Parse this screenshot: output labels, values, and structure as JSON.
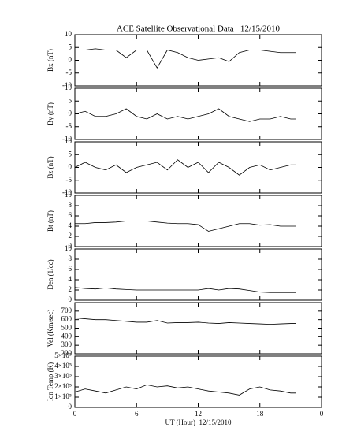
{
  "chart_data": [
    {
      "type": "line",
      "title": "ACE Satellite Observational Data   12/15/2010",
      "ylabel": "Bx (nT)",
      "x": [
        0,
        1,
        2,
        3,
        4,
        5,
        6,
        7,
        8,
        9,
        10,
        11,
        12,
        13,
        14,
        15,
        16,
        17,
        18,
        19,
        20,
        21,
        21.5
      ],
      "values": [
        4,
        4,
        4.5,
        4,
        4,
        1,
        4,
        4,
        -3,
        4,
        3,
        1,
        0,
        0.5,
        1,
        -0.5,
        3,
        4,
        4,
        3.5,
        3,
        3,
        3
      ],
      "xlim": [
        0,
        24
      ],
      "xticks": [
        0,
        6,
        12,
        18,
        24
      ],
      "ylim": [
        -10,
        10
      ],
      "yticks": [
        -10,
        -5,
        0,
        5,
        10
      ],
      "color": "#000000"
    },
    {
      "type": "line",
      "ylabel": "By (nT)",
      "x": [
        0,
        1,
        2,
        3,
        4,
        5,
        6,
        7,
        8,
        9,
        10,
        11,
        12,
        13,
        14,
        15,
        16,
        17,
        18,
        19,
        20,
        21,
        21.5
      ],
      "values": [
        0,
        1,
        -1,
        -1,
        0,
        2,
        -1,
        -2,
        0,
        -2,
        -1,
        -2,
        -1,
        0,
        2,
        -1,
        -2,
        -3,
        -2,
        -2,
        -1,
        -2,
        -2
      ],
      "xlim": [
        0,
        24
      ],
      "xticks": [
        0,
        6,
        12,
        18,
        24
      ],
      "ylim": [
        -10,
        10
      ],
      "yticks": [
        -10,
        -5,
        0,
        5,
        10
      ],
      "color": "#000000"
    },
    {
      "type": "line",
      "ylabel": "Bz (nT)",
      "x": [
        0,
        1,
        2,
        3,
        4,
        5,
        6,
        7,
        8,
        9,
        10,
        11,
        12,
        13,
        14,
        15,
        16,
        17,
        18,
        19,
        20,
        21,
        21.5
      ],
      "values": [
        0,
        2,
        0,
        -1,
        1,
        -2,
        0,
        1,
        2,
        -1,
        3,
        0,
        2,
        -2,
        2,
        0,
        -3,
        0,
        1,
        -1,
        0,
        1,
        1
      ],
      "xlim": [
        0,
        24
      ],
      "xticks": [
        0,
        6,
        12,
        18,
        24
      ],
      "ylim": [
        -10,
        10
      ],
      "yticks": [
        -10,
        -5,
        0,
        5,
        10
      ],
      "color": "#000000"
    },
    {
      "type": "line",
      "ylabel": "Bt (nT)",
      "x": [
        0,
        1,
        2,
        3,
        4,
        5,
        6,
        7,
        8,
        9,
        10,
        11,
        12,
        13,
        14,
        15,
        16,
        17,
        18,
        19,
        20,
        21,
        21.5
      ],
      "values": [
        4.5,
        4.5,
        4.7,
        4.7,
        4.8,
        5,
        5,
        5,
        4.8,
        4.6,
        4.5,
        4.5,
        4.3,
        3,
        3.5,
        4,
        4.5,
        4.5,
        4.2,
        4.3,
        4,
        4,
        4
      ],
      "xlim": [
        0,
        24
      ],
      "xticks": [
        0,
        6,
        12,
        18,
        24
      ],
      "ylim": [
        0,
        10
      ],
      "yticks": [
        0,
        2,
        4,
        6,
        8,
        10
      ],
      "color": "#000000"
    },
    {
      "type": "line",
      "ylabel": "Den (1/cc)",
      "x": [
        0,
        1,
        2,
        3,
        4,
        5,
        6,
        7,
        8,
        9,
        10,
        11,
        12,
        13,
        14,
        15,
        16,
        17,
        18,
        19,
        20,
        21,
        21.5
      ],
      "values": [
        2.5,
        2.3,
        2.2,
        2.4,
        2.2,
        2.1,
        2,
        2,
        2,
        2,
        2,
        2,
        2,
        2.3,
        2,
        2.3,
        2.2,
        1.9,
        1.6,
        1.5,
        1.5,
        1.5,
        1.5
      ],
      "xlim": [
        0,
        24
      ],
      "xticks": [
        0,
        6,
        12,
        18,
        24
      ],
      "ylim": [
        0,
        10
      ],
      "yticks": [
        0,
        2,
        4,
        6,
        8,
        10
      ],
      "color": "#000000"
    },
    {
      "type": "line",
      "ylabel": "Vel (Km/sec)",
      "x": [
        0,
        1,
        2,
        3,
        4,
        5,
        6,
        7,
        8,
        9,
        10,
        11,
        12,
        13,
        14,
        15,
        16,
        17,
        18,
        19,
        20,
        21,
        21.5
      ],
      "values": [
        620,
        610,
        600,
        600,
        590,
        580,
        570,
        570,
        590,
        560,
        565,
        565,
        570,
        560,
        555,
        565,
        560,
        555,
        550,
        545,
        550,
        555,
        555
      ],
      "xlim": [
        0,
        24
      ],
      "xticks": [
        0,
        6,
        12,
        18,
        24
      ],
      "ylim": [
        200,
        800
      ],
      "yticks": [
        200,
        300,
        400,
        500,
        600,
        700
      ],
      "color": "#000000"
    },
    {
      "type": "line",
      "ylabel": "Ion Temp (K)",
      "xlabel": "UT (Hour)  12/15/2010",
      "x": [
        0,
        1,
        2,
        3,
        4,
        5,
        6,
        7,
        8,
        9,
        10,
        11,
        12,
        13,
        14,
        15,
        16,
        17,
        18,
        19,
        20,
        21,
        21.5
      ],
      "values": [
        150000,
        180000,
        160000,
        140000,
        170000,
        200000,
        180000,
        220000,
        200000,
        210000,
        190000,
        200000,
        180000,
        160000,
        150000,
        140000,
        120000,
        180000,
        200000,
        170000,
        160000,
        140000,
        140000
      ],
      "xlim": [
        0,
        24
      ],
      "xticks": [
        0,
        6,
        12,
        18,
        {
          "value": 24,
          "label": "0"
        }
      ],
      "ylim": [
        0,
        500000
      ],
      "yticks": [
        0,
        {
          "value": 100000,
          "label": "1×10⁵"
        },
        {
          "value": 200000,
          "label": "2×10⁵"
        },
        {
          "value": 300000,
          "label": "3×10⁵"
        },
        {
          "value": 400000,
          "label": "4×10⁵"
        },
        {
          "value": 500000,
          "label": "5×10⁵"
        }
      ],
      "color": "#000000"
    }
  ]
}
